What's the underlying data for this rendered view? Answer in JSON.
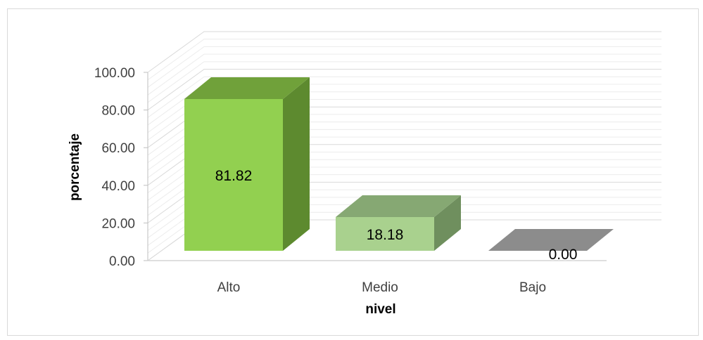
{
  "chart_data": {
    "type": "bar",
    "style": "3d-column",
    "categories": [
      "Alto",
      "Medio",
      "Bajo"
    ],
    "values": [
      81.82,
      18.18,
      0.0
    ],
    "data_labels": [
      "81.82",
      "18.18",
      "0.00"
    ],
    "y_ticks": [
      "0.00",
      "20.00",
      "40.00",
      "60.00",
      "80.00",
      "100.00"
    ],
    "ylim": [
      0,
      100
    ],
    "xlabel": "nivel",
    "ylabel": "porcentaje",
    "grid": true,
    "colors": {
      "front": [
        "#92d050",
        "#a9d18e",
        "#a5a5a5"
      ],
      "top": [
        "#70a13a",
        "#86a873",
        "#8c8c8c"
      ],
      "side": [
        "#5d8a2f",
        "#6f8f5e",
        "#7a7a7a"
      ],
      "grid": "#d9d9d9",
      "wall": "#ececec"
    }
  }
}
